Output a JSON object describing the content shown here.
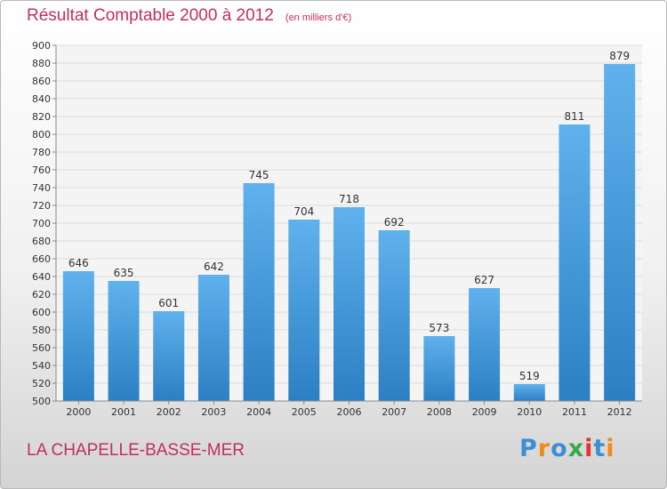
{
  "header": {
    "title": "Résultat Comptable 2000 à 2012",
    "subtitle": "(en milliers d'€)"
  },
  "footer": {
    "location": "LA CHAPELLE-BASSE-MER",
    "brand": "Proxiti",
    "brand_letter_colors": [
      "#3a8fd6",
      "#f08a1c",
      "#3a8fd6",
      "#3aa84a",
      "#e8322a",
      "#3a8fd6",
      "#f08a1c"
    ]
  },
  "colors": {
    "title": "#c0305a",
    "bar_top": "#5fb2ec",
    "bar_bottom": "#2c7fc3",
    "grid": "#dcdcdc",
    "plot_bg": "#f4f4f4"
  },
  "chart_data": {
    "type": "bar",
    "categories": [
      "2000",
      "2001",
      "2002",
      "2003",
      "2004",
      "2005",
      "2006",
      "2007",
      "2008",
      "2009",
      "2010",
      "2011",
      "2012"
    ],
    "values": [
      646,
      635,
      601,
      642,
      745,
      704,
      718,
      692,
      573,
      627,
      519,
      811,
      879
    ],
    "data_labels": [
      "646",
      "635",
      "601",
      "642",
      "745",
      "704",
      "718",
      "692",
      "573",
      "627",
      "519",
      "811",
      "879"
    ],
    "ylim": [
      500,
      900
    ],
    "ytick_step": 20,
    "yticks": [
      "500",
      "520",
      "540",
      "560",
      "580",
      "600",
      "620",
      "640",
      "660",
      "680",
      "700",
      "720",
      "740",
      "760",
      "780",
      "800",
      "820",
      "840",
      "860",
      "880",
      "900"
    ],
    "grid": true,
    "legend": "none"
  }
}
